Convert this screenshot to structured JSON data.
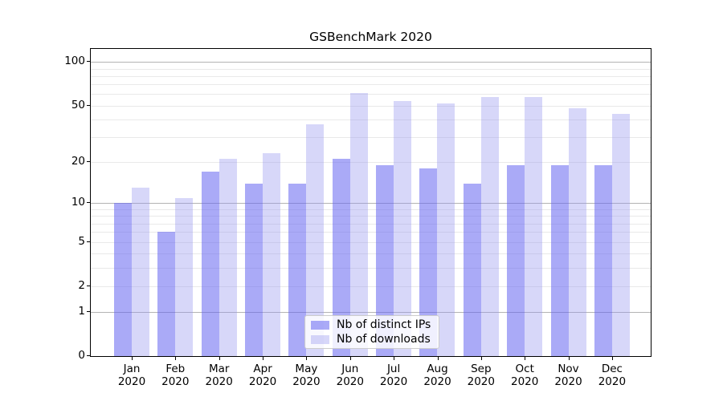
{
  "title": "GSBenchMark 2020",
  "chart_data": {
    "type": "bar",
    "title": "GSBenchMark 2020",
    "categories": [
      "Jan",
      "Feb",
      "Mar",
      "Apr",
      "May",
      "Jun",
      "Jul",
      "Aug",
      "Sep",
      "Oct",
      "Nov",
      "Dec"
    ],
    "x_year_suffix": "2020",
    "series": [
      {
        "name": "Nb of distinct IPs",
        "color": "rgba(100,100,240,0.55)",
        "values": [
          10,
          6,
          17,
          14,
          14,
          21,
          19,
          18,
          14,
          19,
          19,
          19
        ]
      },
      {
        "name": "Nb of downloads",
        "color": "rgba(150,150,240,0.38)",
        "values": [
          13,
          11,
          21,
          23,
          37,
          61,
          54,
          52,
          57,
          57,
          48,
          44
        ]
      }
    ],
    "yscale": "log10(1+y)",
    "ylim": [
      0,
      124
    ],
    "yticks": [
      100,
      50,
      20,
      10,
      5,
      2,
      1,
      0
    ],
    "major_gridlines": [
      1,
      10,
      100
    ],
    "minor_gridlines": [
      2,
      3,
      4,
      5,
      6,
      7,
      8,
      9,
      20,
      30,
      40,
      50,
      60,
      70,
      80,
      90
    ],
    "grid": "on",
    "legend_position": "inside-bottom-center",
    "colors": {
      "bar_distinct_ips": "rgba(100,100,240,0.55)",
      "bar_downloads": "rgba(150,150,240,0.38)",
      "major_grid": "#b3b3b3",
      "minor_grid": "#e9e9e9",
      "spine": "#000000"
    }
  }
}
